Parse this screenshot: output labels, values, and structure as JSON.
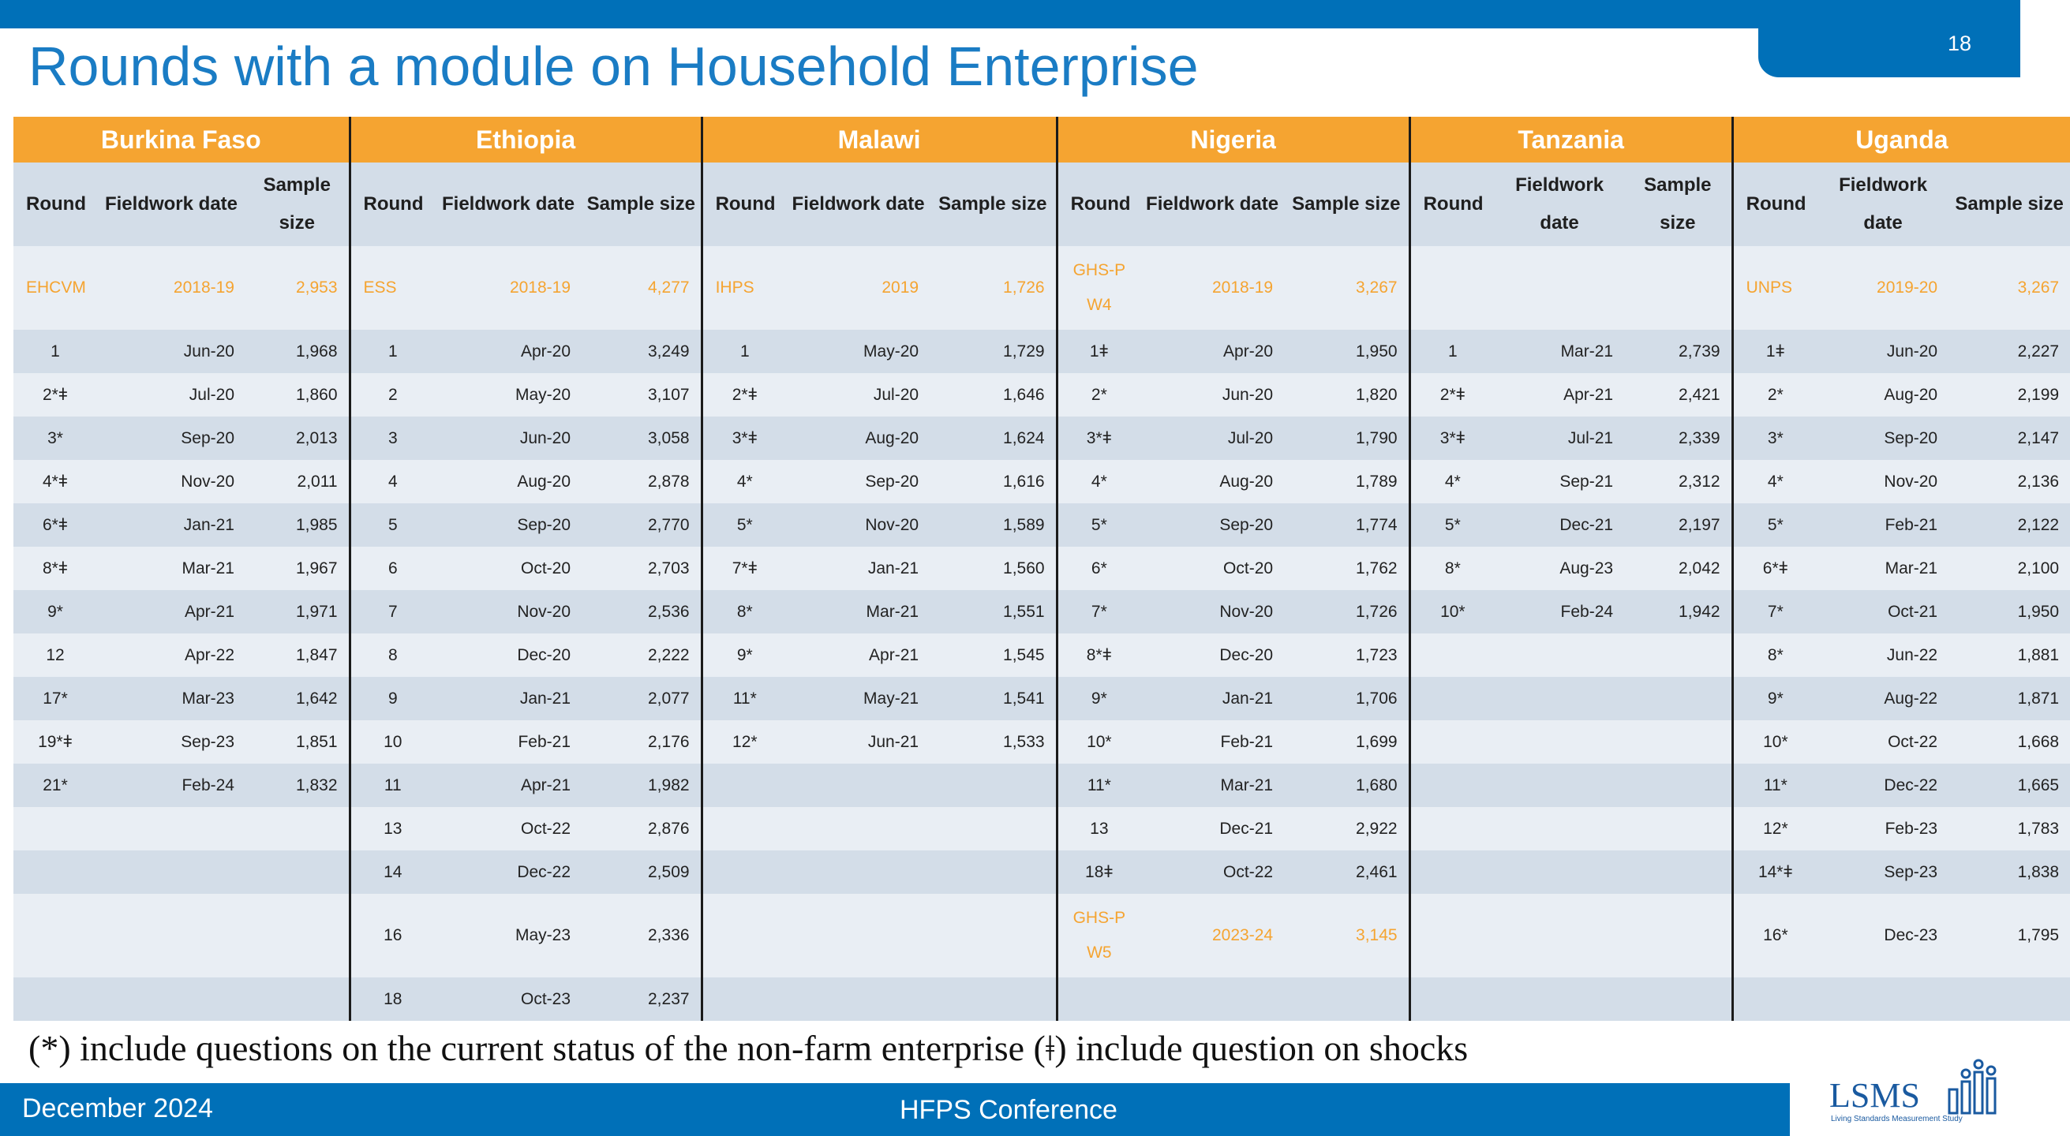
{
  "page_number": "18",
  "title": "Rounds with a module on Household Enterprise",
  "header": {
    "round": "Round",
    "fieldwork": "Fieldwork date",
    "sample": "Sample size"
  },
  "countries": [
    {
      "name": "Burkina Faso",
      "baseline": {
        "round": "EHCVM",
        "date": "2018-19",
        "size": "2,953"
      },
      "rows": [
        [
          "1",
          "Jun-20",
          "1,968"
        ],
        [
          "2*ǂ",
          "Jul-20",
          "1,860"
        ],
        [
          "3*",
          "Sep-20",
          "2,013"
        ],
        [
          "4*ǂ",
          "Nov-20",
          "2,011"
        ],
        [
          "6*ǂ",
          "Jan-21",
          "1,985"
        ],
        [
          "8*ǂ",
          "Mar-21",
          "1,967"
        ],
        [
          "9*",
          "Apr-21",
          "1,971"
        ],
        [
          "12",
          "Apr-22",
          "1,847"
        ],
        [
          "17*",
          "Mar-23",
          "1,642"
        ],
        [
          "19*ǂ",
          "Sep-23",
          "1,851"
        ],
        [
          "21*",
          "Feb-24",
          "1,832"
        ]
      ]
    },
    {
      "name": "Ethiopia",
      "baseline": {
        "round": "ESS",
        "date": "2018-19",
        "size": "4,277"
      },
      "rows": [
        [
          "1",
          "Apr-20",
          "3,249"
        ],
        [
          "2",
          "May-20",
          "3,107"
        ],
        [
          "3",
          "Jun-20",
          "3,058"
        ],
        [
          "4",
          "Aug-20",
          "2,878"
        ],
        [
          "5",
          "Sep-20",
          "2,770"
        ],
        [
          "6",
          "Oct-20",
          "2,703"
        ],
        [
          "7",
          "Nov-20",
          "2,536"
        ],
        [
          "8",
          "Dec-20",
          "2,222"
        ],
        [
          "9",
          "Jan-21",
          "2,077"
        ],
        [
          "10",
          "Feb-21",
          "2,176"
        ],
        [
          "11",
          "Apr-21",
          "1,982"
        ],
        [
          "13",
          "Oct-22",
          "2,876"
        ],
        [
          "14",
          "Dec-22",
          "2,509"
        ],
        [
          "16",
          "May-23",
          "2,336"
        ],
        [
          "18",
          "Oct-23",
          "2,237"
        ]
      ]
    },
    {
      "name": "Malawi",
      "baseline": {
        "round": "IHPS",
        "date": "2019",
        "size": "1,726"
      },
      "rows": [
        [
          "1",
          "May-20",
          "1,729"
        ],
        [
          "2*ǂ",
          "Jul-20",
          "1,646"
        ],
        [
          "3*ǂ",
          "Aug-20",
          "1,624"
        ],
        [
          "4*",
          "Sep-20",
          "1,616"
        ],
        [
          "5*",
          "Nov-20",
          "1,589"
        ],
        [
          "7*ǂ",
          "Jan-21",
          "1,560"
        ],
        [
          "8*",
          "Mar-21",
          "1,551"
        ],
        [
          "9*",
          "Apr-21",
          "1,545"
        ],
        [
          "11*",
          "May-21",
          "1,541"
        ],
        [
          "12*",
          "Jun-21",
          "1,533"
        ]
      ]
    },
    {
      "name": "Nigeria",
      "baseline": {
        "round": "GHS-P W4",
        "date": "2018-19",
        "size": "3,267"
      },
      "rows": [
        [
          "1ǂ",
          "Apr-20",
          "1,950"
        ],
        [
          "2*",
          "Jun-20",
          "1,820"
        ],
        [
          "3*ǂ",
          "Jul-20",
          "1,790"
        ],
        [
          "4*",
          "Aug-20",
          "1,789"
        ],
        [
          "5*",
          "Sep-20",
          "1,774"
        ],
        [
          "6*",
          "Oct-20",
          "1,762"
        ],
        [
          "7*",
          "Nov-20",
          "1,726"
        ],
        [
          "8*ǂ",
          "Dec-20",
          "1,723"
        ],
        [
          "9*",
          "Jan-21",
          "1,706"
        ],
        [
          "10*",
          "Feb-21",
          "1,699"
        ],
        [
          "11*",
          "Mar-21",
          "1,680"
        ],
        [
          "13",
          "Dec-21",
          "2,922"
        ],
        [
          "18ǂ",
          "Oct-22",
          "2,461"
        ]
      ],
      "final": {
        "round": "GHS-P W5",
        "date": "2023-24",
        "size": "3,145"
      }
    },
    {
      "name": "Tanzania",
      "baseline": {
        "round": "",
        "date": "",
        "size": ""
      },
      "rows": [
        [
          "1",
          "Mar-21",
          "2,739"
        ],
        [
          "2*ǂ",
          "Apr-21",
          "2,421"
        ],
        [
          "3*ǂ",
          "Jul-21",
          "2,339"
        ],
        [
          "4*",
          "Sep-21",
          "2,312"
        ],
        [
          "5*",
          "Dec-21",
          "2,197"
        ],
        [
          "8*",
          "Aug-23",
          "2,042"
        ],
        [
          "10*",
          "Feb-24",
          "1,942"
        ]
      ]
    },
    {
      "name": "Uganda",
      "baseline": {
        "round": "UNPS",
        "date": "2019-20",
        "size": "3,267"
      },
      "rows": [
        [
          "1ǂ",
          "Jun-20",
          "2,227"
        ],
        [
          "2*",
          "Aug-20",
          "2,199"
        ],
        [
          "3*",
          "Sep-20",
          "2,147"
        ],
        [
          "4*",
          "Nov-20",
          "2,136"
        ],
        [
          "5*",
          "Feb-21",
          "2,122"
        ],
        [
          "6*ǂ",
          "Mar-21",
          "2,100"
        ],
        [
          "7*",
          "Oct-21",
          "1,950"
        ],
        [
          "8*",
          "Jun-22",
          "1,881"
        ],
        [
          "9*",
          "Aug-22",
          "1,871"
        ],
        [
          "10*",
          "Oct-22",
          "1,668"
        ],
        [
          "11*",
          "Dec-22",
          "1,665"
        ],
        [
          "12*",
          "Feb-23",
          "1,783"
        ],
        [
          "14*ǂ",
          "Sep-23",
          "1,838"
        ],
        [
          "16*",
          "Dec-23",
          "1,795"
        ]
      ]
    }
  ],
  "footnote": "(*) include questions on the current status of the non-farm enterprise (ǂ) include question on shocks",
  "footer": {
    "date": "December 2024",
    "conference": "HFPS Conference"
  },
  "logo": {
    "text": "LSMS",
    "subtitle": "Living Standards Measurement Study",
    "icon": "people-chart-icon"
  },
  "colors": {
    "blue": "#0070b8",
    "orange": "#f5a431",
    "row_dark": "#d3dde8",
    "row_light": "#e9eef4"
  }
}
